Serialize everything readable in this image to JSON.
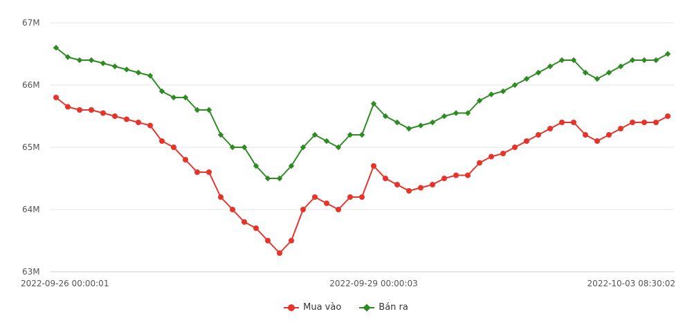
{
  "chart_data": {
    "type": "line",
    "title": "",
    "xlabel": "",
    "ylabel": "",
    "y_ticks": [
      "63M",
      "64M",
      "65M",
      "66M",
      "67M"
    ],
    "y_tick_values": [
      63000000,
      64000000,
      65000000,
      66000000,
      67000000
    ],
    "ylim": [
      63000000,
      67000000
    ],
    "x_tick_labels": [
      {
        "index": 0,
        "label": "2022-09-26 00:00:01"
      },
      {
        "index": 27,
        "label": "2022-09-29 00:00:03"
      },
      {
        "index": 53,
        "label": "2022-10-03 08:30:02"
      }
    ],
    "grid": true,
    "legend_position": "bottom-center",
    "series": [
      {
        "name": "Mua vào",
        "color": "#e8332a",
        "marker": "circle",
        "values": [
          65800000,
          65650000,
          65600000,
          65600000,
          65550000,
          65500000,
          65450000,
          65400000,
          65350000,
          65100000,
          65000000,
          64800000,
          64600000,
          64600000,
          64200000,
          64000000,
          63800000,
          63700000,
          63500000,
          63300000,
          63500000,
          64000000,
          64200000,
          64100000,
          64000000,
          64200000,
          64200000,
          64700000,
          64500000,
          64400000,
          64300000,
          64350000,
          64400000,
          64500000,
          64550000,
          64550000,
          64750000,
          64850000,
          64900000,
          65000000,
          65100000,
          65200000,
          65300000,
          65400000,
          65400000,
          65200000,
          65100000,
          65200000,
          65300000,
          65400000,
          65400000,
          65400000,
          65500000
        ]
      },
      {
        "name": "Bán ra",
        "color": "#2e8b22",
        "marker": "diamond",
        "values": [
          66600000,
          66450000,
          66400000,
          66400000,
          66350000,
          66300000,
          66250000,
          66200000,
          66150000,
          65900000,
          65800000,
          65800000,
          65600000,
          65600000,
          65200000,
          65000000,
          65000000,
          64700000,
          64500000,
          64500000,
          64700000,
          65000000,
          65200000,
          65100000,
          65000000,
          65200000,
          65200000,
          65700000,
          65500000,
          65400000,
          65300000,
          65350000,
          65400000,
          65500000,
          65550000,
          65550000,
          65750000,
          65850000,
          65900000,
          66000000,
          66100000,
          66200000,
          66300000,
          66400000,
          66400000,
          66200000,
          66100000,
          66200000,
          66300000,
          66400000,
          66400000,
          66400000,
          66500000
        ]
      }
    ]
  }
}
